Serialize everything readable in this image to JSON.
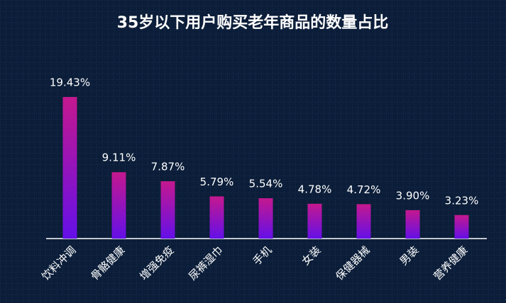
{
  "chart_data": {
    "type": "bar",
    "title": "35岁以下用户购买老年商品的数量占比",
    "categories": [
      "饮料冲调",
      "骨骼健康",
      "增强免疫",
      "尿裤湿巾",
      "手机",
      "女装",
      "保健器械",
      "男装",
      "营养健康"
    ],
    "values": [
      19.43,
      9.11,
      7.87,
      5.79,
      5.54,
      4.78,
      4.72,
      3.9,
      3.23
    ],
    "value_labels": [
      "19.43%",
      "9.11%",
      "7.87%",
      "5.79%",
      "5.54%",
      "4.78%",
      "4.72%",
      "3.90%",
      "3.23%"
    ]
  }
}
